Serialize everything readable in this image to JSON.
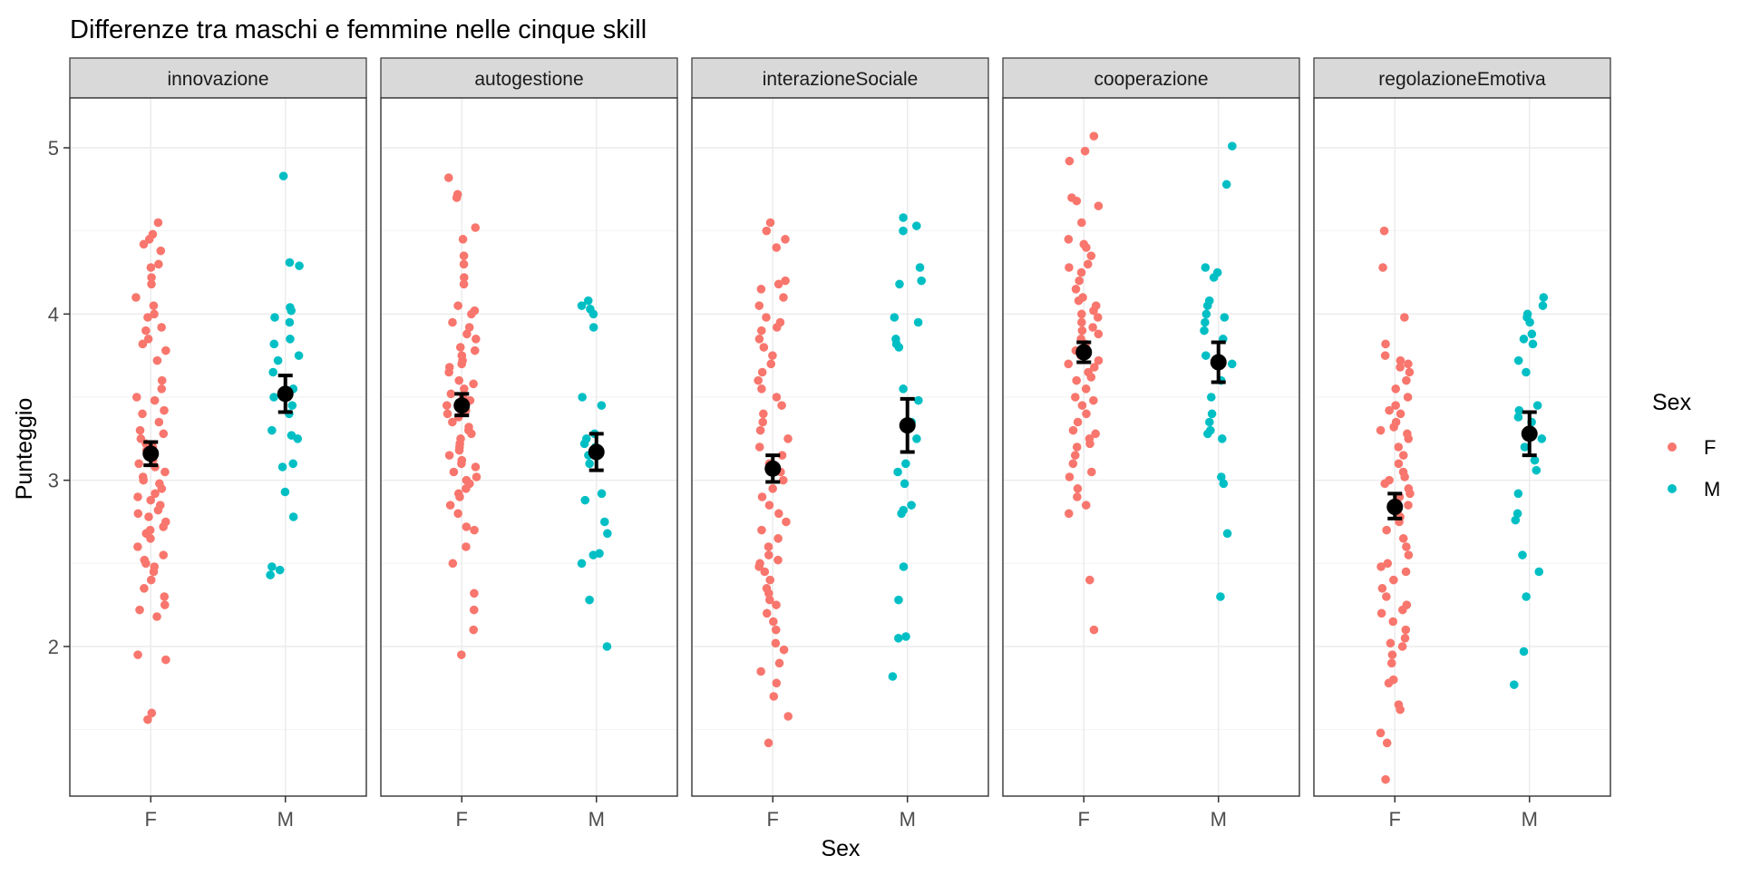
{
  "chart_data": {
    "type": "scatter",
    "title": "Differenze tra maschi e femmine nelle cinque skill",
    "xlabel": "Sex",
    "ylabel": "Punteggio",
    "ylim": [
      1.1,
      5.3
    ],
    "yticks": [
      2,
      3,
      4,
      5
    ],
    "grid": true,
    "categories": [
      "F",
      "M"
    ],
    "legend": {
      "title": "Sex",
      "position": "right",
      "entries": [
        {
          "label": "F",
          "color": "#F8766D"
        },
        {
          "label": "M",
          "color": "#00BFC4"
        }
      ]
    },
    "colors": {
      "F": "#F8766D",
      "M": "#00BFC4",
      "summary": "#000000",
      "strip": "#D9D9D9"
    },
    "panels": [
      {
        "name": "innovazione",
        "summary": {
          "F": {
            "mean": 3.16,
            "low": 3.09,
            "high": 3.23
          },
          "M": {
            "mean": 3.52,
            "low": 3.41,
            "high": 3.63
          }
        },
        "points": {
          "F": [
            4.55,
            4.48,
            4.45,
            4.42,
            4.38,
            4.3,
            4.28,
            4.22,
            4.18,
            4.1,
            4.05,
            4.0,
            3.98,
            3.92,
            3.9,
            3.85,
            3.82,
            3.78,
            3.72,
            3.6,
            3.55,
            3.5,
            3.48,
            3.42,
            3.4,
            3.35,
            3.3,
            3.28,
            3.25,
            3.22,
            3.2,
            3.18,
            3.15,
            3.12,
            3.1,
            3.08,
            3.05,
            3.02,
            3.0,
            2.98,
            2.95,
            2.92,
            2.9,
            2.88,
            2.85,
            2.82,
            2.8,
            2.78,
            2.75,
            2.72,
            2.7,
            2.68,
            2.65,
            2.6,
            2.55,
            2.52,
            2.5,
            2.48,
            2.45,
            2.4,
            2.35,
            2.3,
            2.25,
            2.22,
            2.18,
            1.95,
            1.92,
            1.6,
            1.56
          ],
          "M": [
            4.83,
            4.31,
            4.29,
            4.04,
            4.02,
            3.98,
            3.95,
            3.85,
            3.82,
            3.75,
            3.72,
            3.65,
            3.55,
            3.5,
            3.45,
            3.4,
            3.3,
            3.27,
            3.25,
            3.1,
            3.08,
            2.93,
            2.78,
            2.48,
            2.46,
            2.43
          ]
        }
      },
      {
        "name": "autogestione",
        "summary": {
          "F": {
            "mean": 3.45,
            "low": 3.39,
            "high": 3.52
          },
          "M": {
            "mean": 3.17,
            "low": 3.06,
            "high": 3.28
          }
        },
        "points": {
          "F": [
            4.82,
            4.72,
            4.7,
            4.52,
            4.45,
            4.35,
            4.3,
            4.22,
            4.18,
            4.05,
            4.02,
            4.0,
            3.95,
            3.92,
            3.88,
            3.85,
            3.8,
            3.78,
            3.75,
            3.72,
            3.7,
            3.68,
            3.65,
            3.6,
            3.58,
            3.55,
            3.52,
            3.5,
            3.48,
            3.45,
            3.42,
            3.4,
            3.38,
            3.35,
            3.32,
            3.3,
            3.28,
            3.25,
            3.22,
            3.2,
            3.18,
            3.15,
            3.12,
            3.1,
            3.08,
            3.05,
            3.02,
            3.0,
            2.98,
            2.95,
            2.92,
            2.9,
            2.85,
            2.8,
            2.72,
            2.7,
            2.6,
            2.5,
            2.32,
            2.22,
            2.1,
            1.95
          ],
          "M": [
            4.08,
            4.05,
            4.03,
            4.0,
            3.92,
            3.5,
            3.45,
            3.28,
            3.25,
            3.22,
            3.2,
            3.15,
            3.1,
            2.92,
            2.88,
            2.75,
            2.68,
            2.56,
            2.55,
            2.5,
            2.28,
            2.0
          ]
        }
      },
      {
        "name": "interazioneSociale",
        "summary": {
          "F": {
            "mean": 3.07,
            "low": 2.99,
            "high": 3.15
          },
          "M": {
            "mean": 3.33,
            "low": 3.17,
            "high": 3.49
          }
        },
        "points": {
          "F": [
            4.55,
            4.5,
            4.45,
            4.4,
            4.2,
            4.18,
            4.15,
            4.1,
            4.05,
            3.98,
            3.95,
            3.92,
            3.9,
            3.85,
            3.8,
            3.75,
            3.7,
            3.65,
            3.6,
            3.55,
            3.5,
            3.45,
            3.4,
            3.35,
            3.3,
            3.25,
            3.2,
            3.15,
            3.1,
            3.05,
            3.0,
            2.95,
            2.9,
            2.85,
            2.8,
            2.75,
            2.7,
            2.65,
            2.6,
            2.55,
            2.52,
            2.5,
            2.48,
            2.45,
            2.4,
            2.35,
            2.32,
            2.28,
            2.25,
            2.2,
            2.15,
            2.1,
            2.02,
            1.98,
            1.9,
            1.85,
            1.78,
            1.7,
            1.58,
            1.42
          ],
          "M": [
            4.58,
            4.53,
            4.5,
            4.28,
            4.2,
            4.18,
            3.98,
            3.95,
            3.85,
            3.82,
            3.8,
            3.55,
            3.48,
            3.35,
            3.25,
            3.1,
            3.05,
            2.98,
            2.85,
            2.82,
            2.8,
            2.48,
            2.28,
            2.06,
            2.05,
            1.82
          ]
        }
      },
      {
        "name": "cooperazione",
        "summary": {
          "F": {
            "mean": 3.77,
            "low": 3.71,
            "high": 3.83
          },
          "M": {
            "mean": 3.71,
            "low": 3.59,
            "high": 3.83
          }
        },
        "points": {
          "F": [
            5.07,
            4.98,
            4.92,
            4.7,
            4.68,
            4.65,
            4.55,
            4.45,
            4.42,
            4.4,
            4.35,
            4.3,
            4.28,
            4.25,
            4.2,
            4.15,
            4.1,
            4.08,
            4.05,
            4.02,
            4.0,
            3.98,
            3.95,
            3.92,
            3.9,
            3.88,
            3.85,
            3.82,
            3.8,
            3.78,
            3.75,
            3.72,
            3.7,
            3.68,
            3.65,
            3.62,
            3.6,
            3.55,
            3.5,
            3.48,
            3.45,
            3.4,
            3.35,
            3.3,
            3.28,
            3.25,
            3.22,
            3.2,
            3.15,
            3.1,
            3.05,
            3.02,
            2.95,
            2.9,
            2.85,
            2.8,
            2.4,
            2.1
          ],
          "M": [
            5.01,
            4.78,
            4.28,
            4.25,
            4.22,
            4.08,
            4.05,
            4.0,
            3.98,
            3.95,
            3.9,
            3.85,
            3.75,
            3.7,
            3.6,
            3.5,
            3.4,
            3.35,
            3.3,
            3.28,
            3.25,
            3.02,
            2.98,
            2.68,
            2.3
          ]
        }
      },
      {
        "name": "regolazioneEmotiva",
        "summary": {
          "F": {
            "mean": 2.84,
            "low": 2.77,
            "high": 2.92
          },
          "M": {
            "mean": 3.28,
            "low": 3.15,
            "high": 3.41
          }
        },
        "points": {
          "F": [
            4.5,
            4.28,
            3.98,
            3.82,
            3.75,
            3.72,
            3.7,
            3.68,
            3.65,
            3.6,
            3.55,
            3.5,
            3.45,
            3.42,
            3.4,
            3.35,
            3.32,
            3.3,
            3.28,
            3.25,
            3.2,
            3.15,
            3.1,
            3.05,
            3.02,
            3.0,
            2.98,
            2.95,
            2.92,
            2.9,
            2.85,
            2.8,
            2.78,
            2.75,
            2.7,
            2.65,
            2.6,
            2.55,
            2.5,
            2.48,
            2.45,
            2.4,
            2.35,
            2.3,
            2.25,
            2.22,
            2.2,
            2.15,
            2.1,
            2.05,
            2.02,
            2.0,
            1.95,
            1.9,
            1.8,
            1.78,
            1.65,
            1.62,
            1.48,
            1.42,
            1.2
          ],
          "M": [
            4.1,
            4.05,
            4.0,
            3.98,
            3.95,
            3.88,
            3.85,
            3.82,
            3.72,
            3.65,
            3.45,
            3.42,
            3.38,
            3.35,
            3.25,
            3.2,
            3.12,
            3.06,
            2.92,
            2.8,
            2.76,
            2.55,
            2.45,
            2.3,
            1.97,
            1.77
          ]
        }
      }
    ]
  }
}
